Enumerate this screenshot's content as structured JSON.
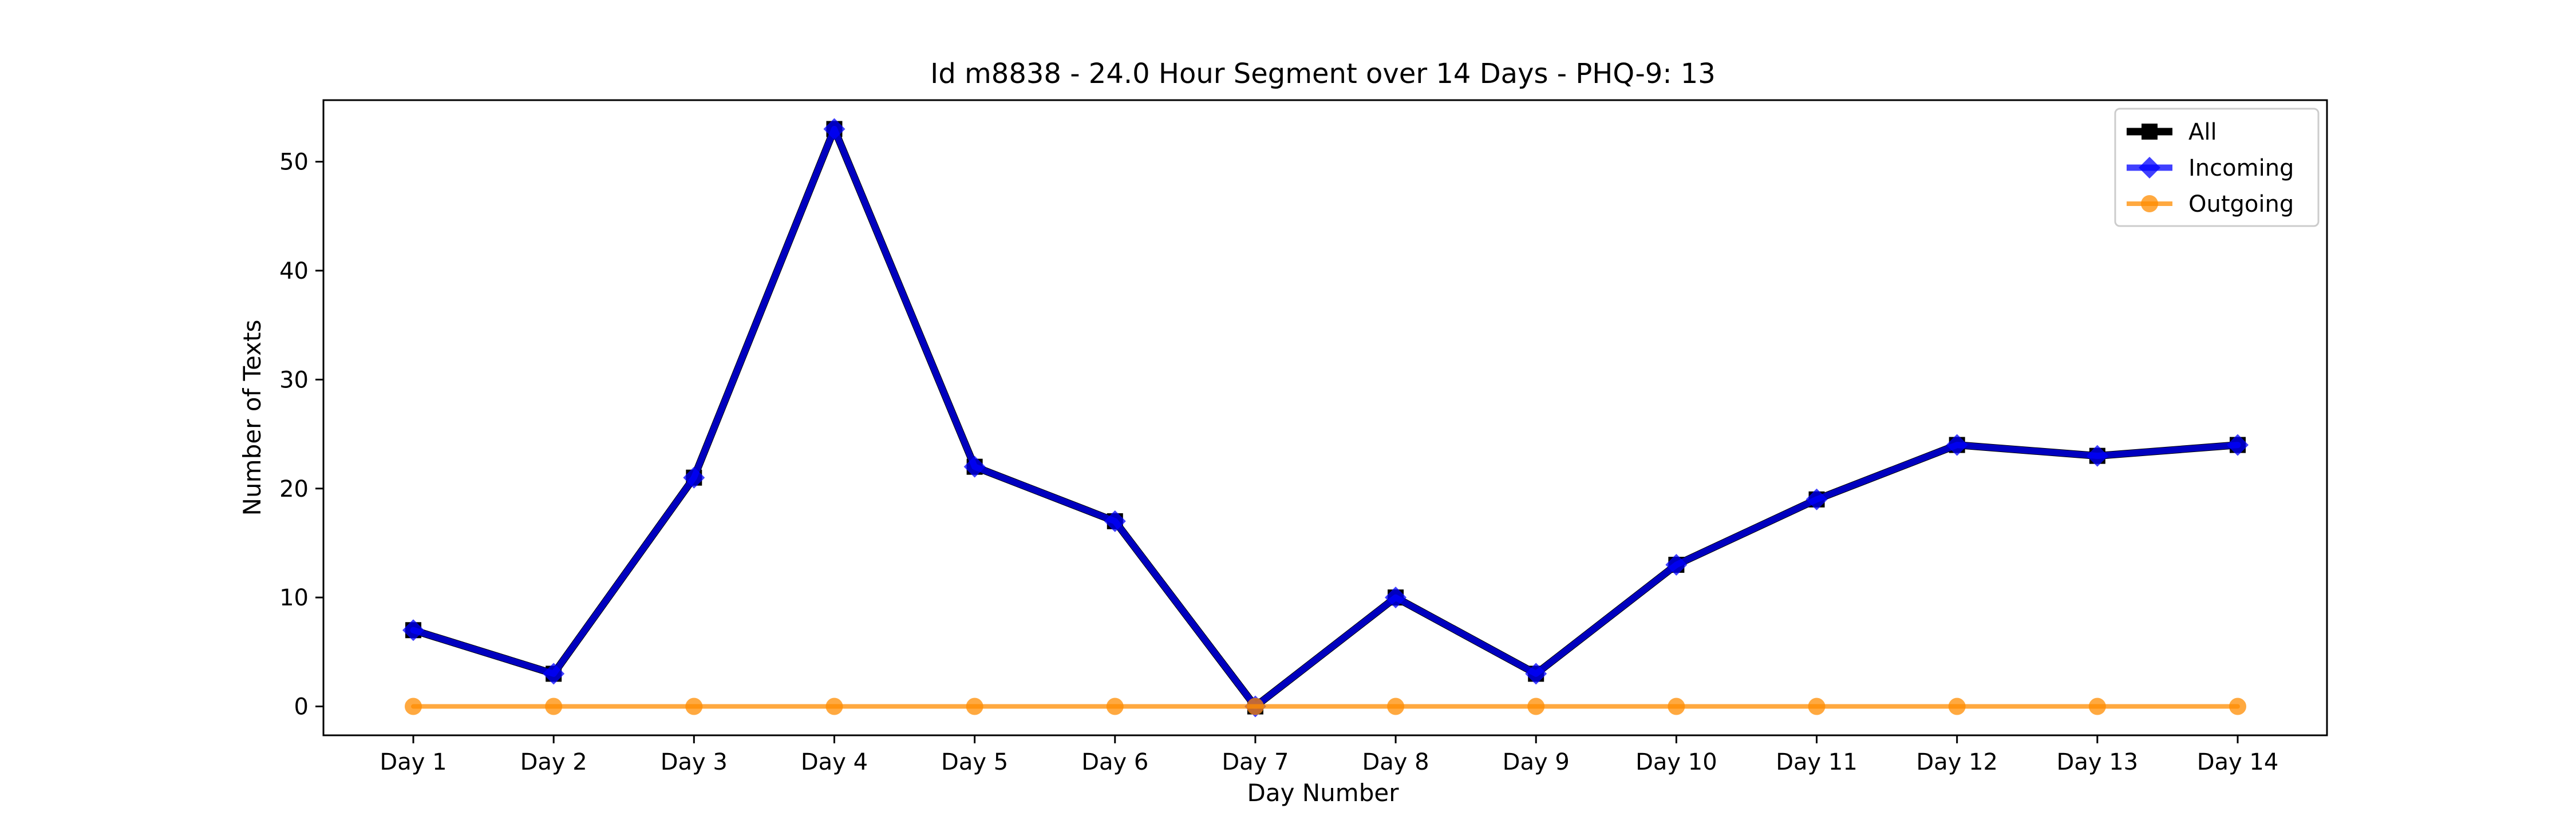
{
  "chart_data": {
    "type": "line",
    "title": "Id m8838 - 24.0 Hour Segment over 14 Days - PHQ-9: 13",
    "xlabel": "Day Number",
    "ylabel": "Number of Texts",
    "categories": [
      "Day 1",
      "Day 2",
      "Day 3",
      "Day 4",
      "Day 5",
      "Day 6",
      "Day 7",
      "Day 8",
      "Day 9",
      "Day 10",
      "Day 11",
      "Day 12",
      "Day 13",
      "Day 14"
    ],
    "ylim": [
      -2.65,
      55.65
    ],
    "yticks": [
      0,
      10,
      20,
      30,
      40,
      50
    ],
    "grid": false,
    "legend": "top-right",
    "series": [
      {
        "name": "All",
        "marker": "square",
        "color": "#000000",
        "values": [
          7,
          3,
          21,
          53,
          22,
          17,
          0,
          10,
          3,
          13,
          19,
          24,
          23,
          24
        ]
      },
      {
        "name": "Incoming",
        "marker": "diamond",
        "color": "#0000ff",
        "values": [
          7,
          3,
          21,
          53,
          22,
          17,
          0,
          10,
          3,
          13,
          19,
          24,
          23,
          24
        ]
      },
      {
        "name": "Outgoing",
        "marker": "circle",
        "color": "#ff8c00",
        "values": [
          0,
          0,
          0,
          0,
          0,
          0,
          0,
          0,
          0,
          0,
          0,
          0,
          0,
          0
        ]
      }
    ]
  }
}
